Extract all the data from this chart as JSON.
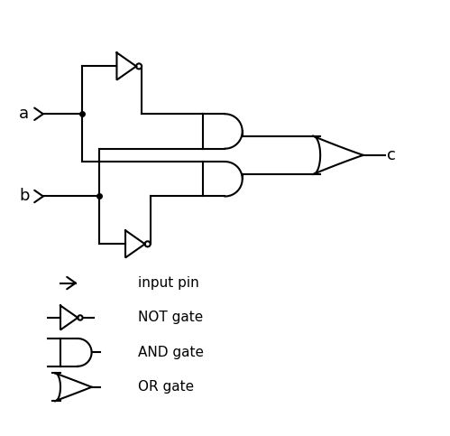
{
  "bg_color": "#ffffff",
  "line_color": "#000000",
  "line_width": 1.5,
  "fig_width": 4.99,
  "fig_height": 4.83,
  "legend_items": [
    {
      "label": "input pin",
      "type": "input"
    },
    {
      "label": "NOT gate",
      "type": "not"
    },
    {
      "label": "AND gate",
      "type": "and"
    },
    {
      "label": "OR gate",
      "type": "or"
    }
  ]
}
